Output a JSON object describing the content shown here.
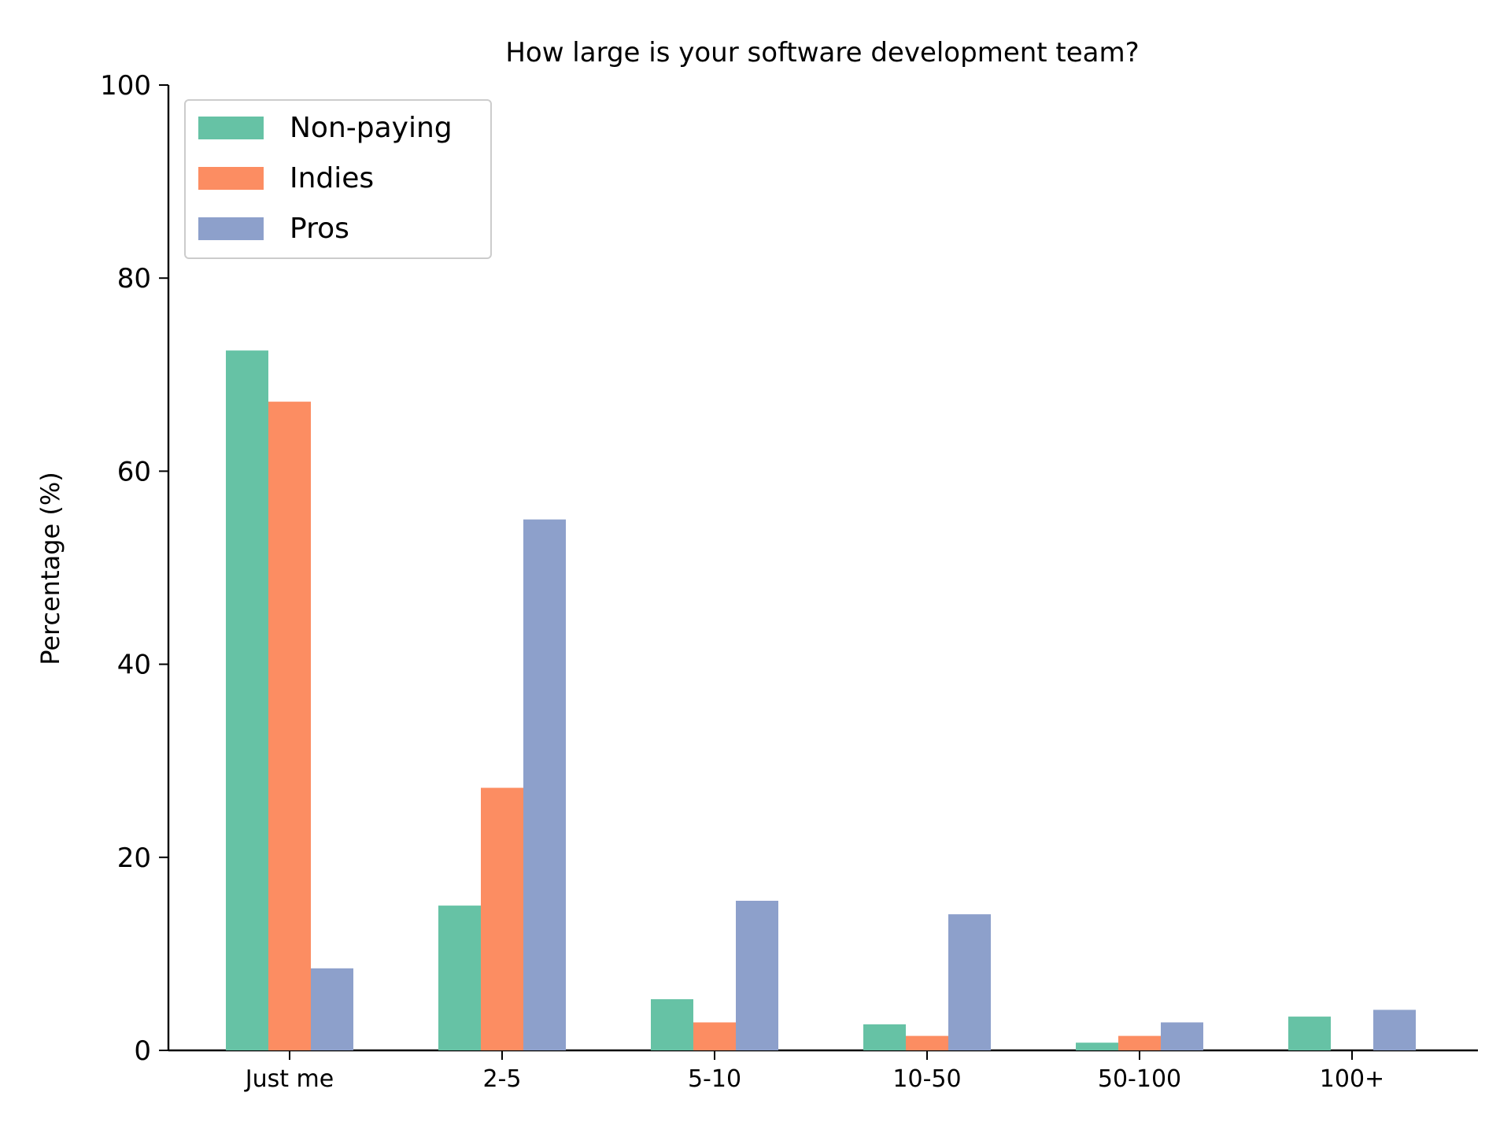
{
  "chart_data": {
    "type": "bar",
    "title": "How large is your software development team?",
    "xlabel": "",
    "ylabel": "Percentage (%)",
    "ylim": [
      0,
      100
    ],
    "yticks": [
      "0",
      "20",
      "40",
      "60",
      "80",
      "100"
    ],
    "categories": [
      "Just me",
      "2-5",
      "5-10",
      "10-50",
      "50-100",
      "100+"
    ],
    "series": [
      {
        "name": "Non-paying",
        "color": "#66c2a5",
        "values": [
          72.5,
          15.0,
          5.3,
          2.7,
          0.8,
          3.5
        ]
      },
      {
        "name": "Indies",
        "color": "#fc8d62",
        "values": [
          67.2,
          27.2,
          2.9,
          1.5,
          1.5,
          0
        ]
      },
      {
        "name": "Pros",
        "color": "#8da0cb",
        "values": [
          8.5,
          55.0,
          15.5,
          14.1,
          2.9,
          4.2
        ]
      }
    ],
    "legend": {
      "position": "top-left"
    },
    "grid": false
  }
}
